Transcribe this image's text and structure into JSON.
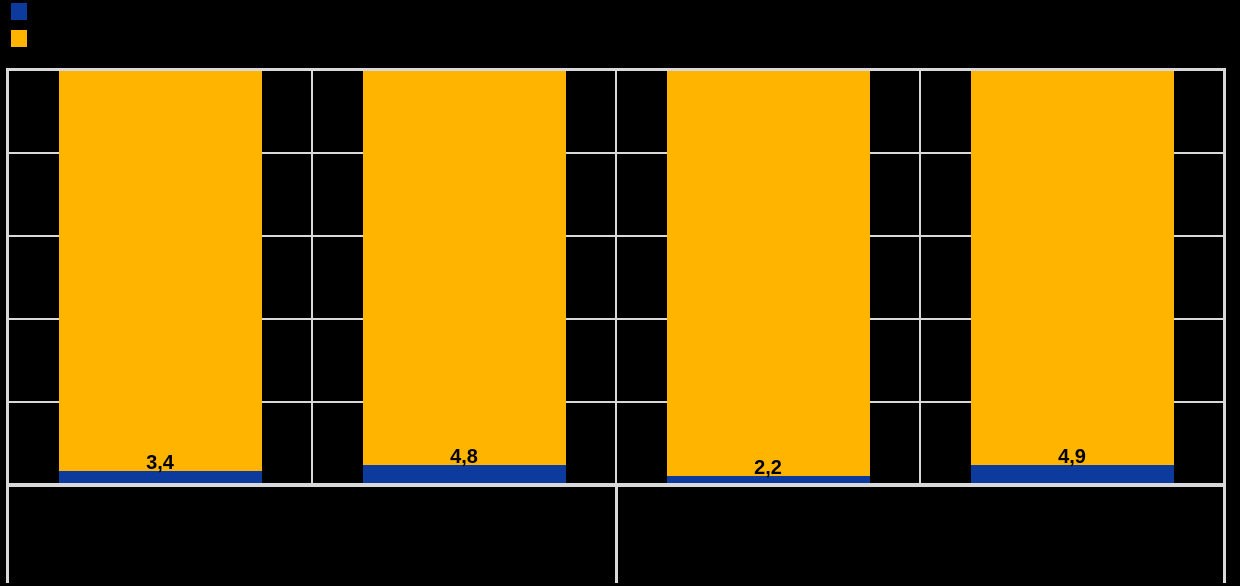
{
  "chart_data": {
    "type": "bar",
    "subtype": "stacked-100-percent-column",
    "title": "",
    "categories": [
      "",
      "",
      "",
      ""
    ],
    "category_groups": [
      "",
      ""
    ],
    "series": [
      {
        "legend_label": "",
        "color": "#0D3B9D",
        "values": [
          3.4,
          4.8,
          2.2,
          4.9
        ],
        "data_labels": [
          "3,4",
          "4,8",
          "2,2",
          "4,9"
        ],
        "data_labels_visible": true
      },
      {
        "legend_label": "",
        "color": "#FFB400",
        "values": [
          96.6,
          95.2,
          97.8,
          95.1
        ],
        "data_labels": [],
        "data_labels_visible": false
      }
    ],
    "ylim": [
      0,
      100
    ],
    "ytick_step": 20,
    "grid": true,
    "legend_position": "top-left",
    "decimal_separator": ",",
    "colors": {
      "background": "#000000",
      "grid": "#D9D9D9",
      "axis": "#D9D9D9",
      "data_label": "#000000"
    }
  }
}
